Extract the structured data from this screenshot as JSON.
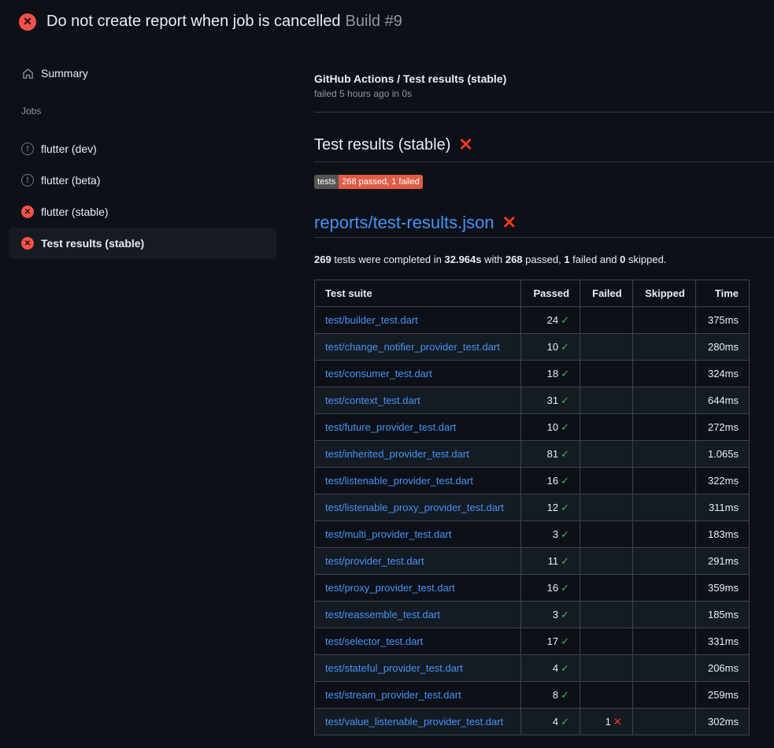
{
  "title": {
    "text": "Do not create report when job is cancelled",
    "build": "Build #9",
    "status_color": "#f85149"
  },
  "sidebar": {
    "summary": "Summary",
    "jobs_label": "Jobs",
    "items": [
      {
        "label": "flutter (dev)",
        "status": "warning"
      },
      {
        "label": "flutter (beta)",
        "status": "warning"
      },
      {
        "label": "flutter (stable)",
        "status": "failed"
      },
      {
        "label": "Test results (stable)",
        "status": "failed",
        "active": true
      }
    ]
  },
  "main": {
    "check_title": "GitHub Actions / Test results (stable)",
    "check_sub": "failed 5 hours ago in 0s",
    "heading": "Test results (stable)",
    "badge": {
      "label": "tests",
      "value": "268 passed, 1 failed"
    },
    "report_title": "reports/test-results.json",
    "summary": {
      "total": "269",
      "t1": " tests were completed in ",
      "duration": "32.964s",
      "t2": " with ",
      "passed": "268",
      "t3": " passed, ",
      "failed": "1",
      "t4": " failed and ",
      "skipped": "0",
      "t5": " skipped."
    },
    "table": {
      "headers": [
        "Test suite",
        "Passed",
        "Failed",
        "Skipped",
        "Time"
      ],
      "rows": [
        [
          "test/builder_test.dart",
          "24",
          "",
          "",
          "375ms"
        ],
        [
          "test/change_notifier_provider_test.dart",
          "10",
          "",
          "",
          "280ms"
        ],
        [
          "test/consumer_test.dart",
          "18",
          "",
          "",
          "324ms"
        ],
        [
          "test/context_test.dart",
          "31",
          "",
          "",
          "644ms"
        ],
        [
          "test/future_provider_test.dart",
          "10",
          "",
          "",
          "272ms"
        ],
        [
          "test/inherited_provider_test.dart",
          "81",
          "",
          "",
          "1.065s"
        ],
        [
          "test/listenable_provider_test.dart",
          "16",
          "",
          "",
          "322ms"
        ],
        [
          "test/listenable_proxy_provider_test.dart",
          "12",
          "",
          "",
          "311ms"
        ],
        [
          "test/multi_provider_test.dart",
          "3",
          "",
          "",
          "183ms"
        ],
        [
          "test/provider_test.dart",
          "11",
          "",
          "",
          "291ms"
        ],
        [
          "test/proxy_provider_test.dart",
          "16",
          "",
          "",
          "359ms"
        ],
        [
          "test/reassemble_test.dart",
          "3",
          "",
          "",
          "185ms"
        ],
        [
          "test/selector_test.dart",
          "17",
          "",
          "",
          "331ms"
        ],
        [
          "test/stateful_provider_test.dart",
          "4",
          "",
          "",
          "206ms"
        ],
        [
          "test/stream_provider_test.dart",
          "8",
          "",
          "",
          "259ms"
        ],
        [
          "test/value_listenable_provider_test.dart",
          "4",
          "1",
          "",
          "302ms"
        ]
      ]
    }
  }
}
